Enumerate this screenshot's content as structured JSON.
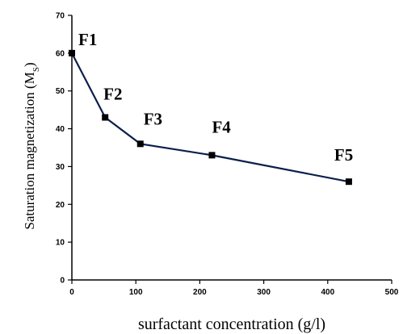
{
  "chart_data": {
    "type": "line",
    "title": "",
    "xlabel": "surfactant concentration (g/l)",
    "ylabel_main": "Saturation magnetization (M",
    "ylabel_sub": "S",
    "ylabel_close": ")",
    "xlim": [
      0,
      500
    ],
    "ylim": [
      0,
      70
    ],
    "xticks": [
      0,
      100,
      200,
      300,
      400,
      500
    ],
    "yticks": [
      0,
      10,
      20,
      30,
      40,
      50,
      60,
      70
    ],
    "grid": false,
    "legend": "none",
    "series": [
      {
        "color": "#0b1f4d",
        "marker": "square",
        "points": [
          {
            "x": 0,
            "y": 60,
            "label": "F1"
          },
          {
            "x": 52,
            "y": 43,
            "label": "F2"
          },
          {
            "x": 107,
            "y": 36,
            "label": "F3"
          },
          {
            "x": 219,
            "y": 33,
            "label": "F4"
          },
          {
            "x": 433,
            "y": 26,
            "label": "F5"
          }
        ]
      }
    ]
  }
}
